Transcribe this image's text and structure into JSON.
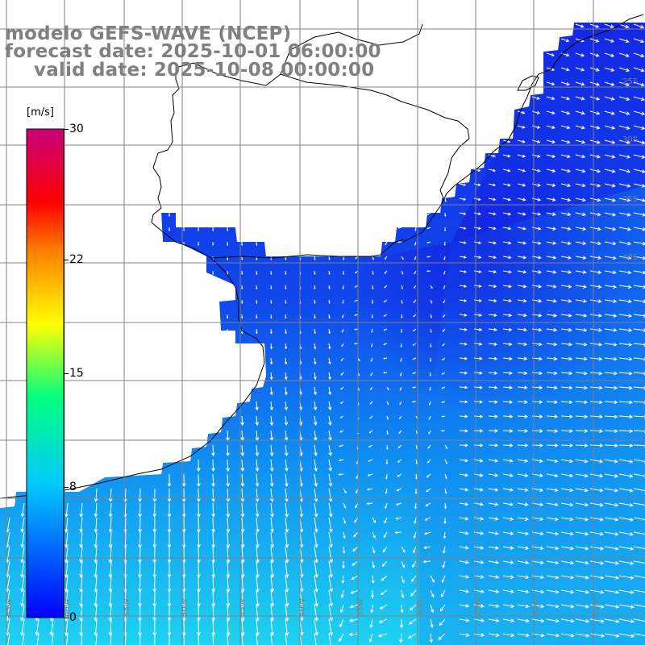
{
  "map": {
    "title_line1": "modelo GEFS-WAVE (NCEP)",
    "title_line2": "forecast date: 2025-10-01 06:00:00",
    "title_line3": "valid date: 2025-10-08 00:00:00",
    "colors": {
      "ocean_low": "#1a2fe6",
      "ocean_mid": "#0f7ff2",
      "ocean_high": "#1ed2f0",
      "land": "#ffffff",
      "coastline": "#000000",
      "grid": "#808080",
      "arrows": "#ffffff"
    }
  },
  "colorbar": {
    "unit": "[m/s]",
    "ticks": [
      {
        "label": "30",
        "value": 30
      },
      {
        "label": "22",
        "value": 22
      },
      {
        "label": "15",
        "value": 15
      },
      {
        "label": "8",
        "value": 8
      },
      {
        "label": "0",
        "value": 0
      }
    ],
    "stops": [
      "#0000ff",
      "#00c8ff",
      "#00ff80",
      "#ffff00",
      "#ff8000",
      "#ff0000",
      "#c8007a"
    ]
  },
  "grid_labels": {
    "bottom": [
      "65W",
      "60W",
      "55W",
      "50W",
      "45W",
      "40W",
      "35W",
      "30W",
      "25W",
      "20W",
      "15W"
    ],
    "right": [
      "25S",
      "30S",
      "35S",
      "40S"
    ]
  }
}
